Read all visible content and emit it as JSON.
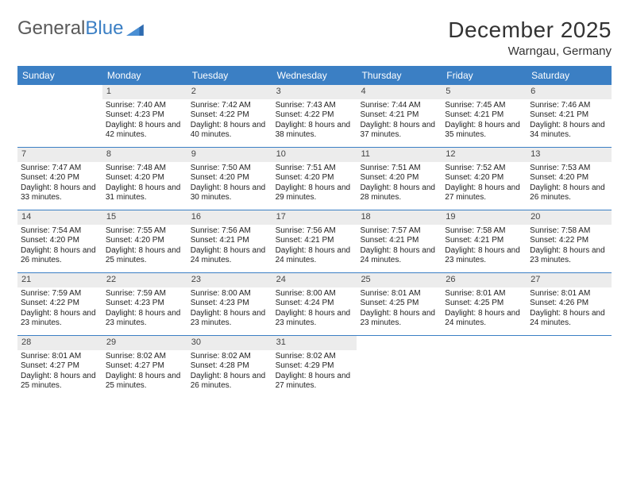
{
  "logo": {
    "text1": "General",
    "text2": "Blue"
  },
  "title": "December 2025",
  "location": "Warngau, Germany",
  "colors": {
    "header_bg": "#3b7fc4",
    "daynum_bg": "#ececec",
    "rule": "#3b7fc4",
    "logo_gray": "#5a5a5a",
    "logo_blue": "#3b7fc4"
  },
  "days_of_week": [
    "Sunday",
    "Monday",
    "Tuesday",
    "Wednesday",
    "Thursday",
    "Friday",
    "Saturday"
  ],
  "weeks": [
    [
      null,
      {
        "n": "1",
        "sr": "Sunrise: 7:40 AM",
        "ss": "Sunset: 4:23 PM",
        "dl": "Daylight: 8 hours and 42 minutes."
      },
      {
        "n": "2",
        "sr": "Sunrise: 7:42 AM",
        "ss": "Sunset: 4:22 PM",
        "dl": "Daylight: 8 hours and 40 minutes."
      },
      {
        "n": "3",
        "sr": "Sunrise: 7:43 AM",
        "ss": "Sunset: 4:22 PM",
        "dl": "Daylight: 8 hours and 38 minutes."
      },
      {
        "n": "4",
        "sr": "Sunrise: 7:44 AM",
        "ss": "Sunset: 4:21 PM",
        "dl": "Daylight: 8 hours and 37 minutes."
      },
      {
        "n": "5",
        "sr": "Sunrise: 7:45 AM",
        "ss": "Sunset: 4:21 PM",
        "dl": "Daylight: 8 hours and 35 minutes."
      },
      {
        "n": "6",
        "sr": "Sunrise: 7:46 AM",
        "ss": "Sunset: 4:21 PM",
        "dl": "Daylight: 8 hours and 34 minutes."
      }
    ],
    [
      {
        "n": "7",
        "sr": "Sunrise: 7:47 AM",
        "ss": "Sunset: 4:20 PM",
        "dl": "Daylight: 8 hours and 33 minutes."
      },
      {
        "n": "8",
        "sr": "Sunrise: 7:48 AM",
        "ss": "Sunset: 4:20 PM",
        "dl": "Daylight: 8 hours and 31 minutes."
      },
      {
        "n": "9",
        "sr": "Sunrise: 7:50 AM",
        "ss": "Sunset: 4:20 PM",
        "dl": "Daylight: 8 hours and 30 minutes."
      },
      {
        "n": "10",
        "sr": "Sunrise: 7:51 AM",
        "ss": "Sunset: 4:20 PM",
        "dl": "Daylight: 8 hours and 29 minutes."
      },
      {
        "n": "11",
        "sr": "Sunrise: 7:51 AM",
        "ss": "Sunset: 4:20 PM",
        "dl": "Daylight: 8 hours and 28 minutes."
      },
      {
        "n": "12",
        "sr": "Sunrise: 7:52 AM",
        "ss": "Sunset: 4:20 PM",
        "dl": "Daylight: 8 hours and 27 minutes."
      },
      {
        "n": "13",
        "sr": "Sunrise: 7:53 AM",
        "ss": "Sunset: 4:20 PM",
        "dl": "Daylight: 8 hours and 26 minutes."
      }
    ],
    [
      {
        "n": "14",
        "sr": "Sunrise: 7:54 AM",
        "ss": "Sunset: 4:20 PM",
        "dl": "Daylight: 8 hours and 26 minutes."
      },
      {
        "n": "15",
        "sr": "Sunrise: 7:55 AM",
        "ss": "Sunset: 4:20 PM",
        "dl": "Daylight: 8 hours and 25 minutes."
      },
      {
        "n": "16",
        "sr": "Sunrise: 7:56 AM",
        "ss": "Sunset: 4:21 PM",
        "dl": "Daylight: 8 hours and 24 minutes."
      },
      {
        "n": "17",
        "sr": "Sunrise: 7:56 AM",
        "ss": "Sunset: 4:21 PM",
        "dl": "Daylight: 8 hours and 24 minutes."
      },
      {
        "n": "18",
        "sr": "Sunrise: 7:57 AM",
        "ss": "Sunset: 4:21 PM",
        "dl": "Daylight: 8 hours and 24 minutes."
      },
      {
        "n": "19",
        "sr": "Sunrise: 7:58 AM",
        "ss": "Sunset: 4:21 PM",
        "dl": "Daylight: 8 hours and 23 minutes."
      },
      {
        "n": "20",
        "sr": "Sunrise: 7:58 AM",
        "ss": "Sunset: 4:22 PM",
        "dl": "Daylight: 8 hours and 23 minutes."
      }
    ],
    [
      {
        "n": "21",
        "sr": "Sunrise: 7:59 AM",
        "ss": "Sunset: 4:22 PM",
        "dl": "Daylight: 8 hours and 23 minutes."
      },
      {
        "n": "22",
        "sr": "Sunrise: 7:59 AM",
        "ss": "Sunset: 4:23 PM",
        "dl": "Daylight: 8 hours and 23 minutes."
      },
      {
        "n": "23",
        "sr": "Sunrise: 8:00 AM",
        "ss": "Sunset: 4:23 PM",
        "dl": "Daylight: 8 hours and 23 minutes."
      },
      {
        "n": "24",
        "sr": "Sunrise: 8:00 AM",
        "ss": "Sunset: 4:24 PM",
        "dl": "Daylight: 8 hours and 23 minutes."
      },
      {
        "n": "25",
        "sr": "Sunrise: 8:01 AM",
        "ss": "Sunset: 4:25 PM",
        "dl": "Daylight: 8 hours and 23 minutes."
      },
      {
        "n": "26",
        "sr": "Sunrise: 8:01 AM",
        "ss": "Sunset: 4:25 PM",
        "dl": "Daylight: 8 hours and 24 minutes."
      },
      {
        "n": "27",
        "sr": "Sunrise: 8:01 AM",
        "ss": "Sunset: 4:26 PM",
        "dl": "Daylight: 8 hours and 24 minutes."
      }
    ],
    [
      {
        "n": "28",
        "sr": "Sunrise: 8:01 AM",
        "ss": "Sunset: 4:27 PM",
        "dl": "Daylight: 8 hours and 25 minutes."
      },
      {
        "n": "29",
        "sr": "Sunrise: 8:02 AM",
        "ss": "Sunset: 4:27 PM",
        "dl": "Daylight: 8 hours and 25 minutes."
      },
      {
        "n": "30",
        "sr": "Sunrise: 8:02 AM",
        "ss": "Sunset: 4:28 PM",
        "dl": "Daylight: 8 hours and 26 minutes."
      },
      {
        "n": "31",
        "sr": "Sunrise: 8:02 AM",
        "ss": "Sunset: 4:29 PM",
        "dl": "Daylight: 8 hours and 27 minutes."
      },
      null,
      null,
      null
    ]
  ]
}
